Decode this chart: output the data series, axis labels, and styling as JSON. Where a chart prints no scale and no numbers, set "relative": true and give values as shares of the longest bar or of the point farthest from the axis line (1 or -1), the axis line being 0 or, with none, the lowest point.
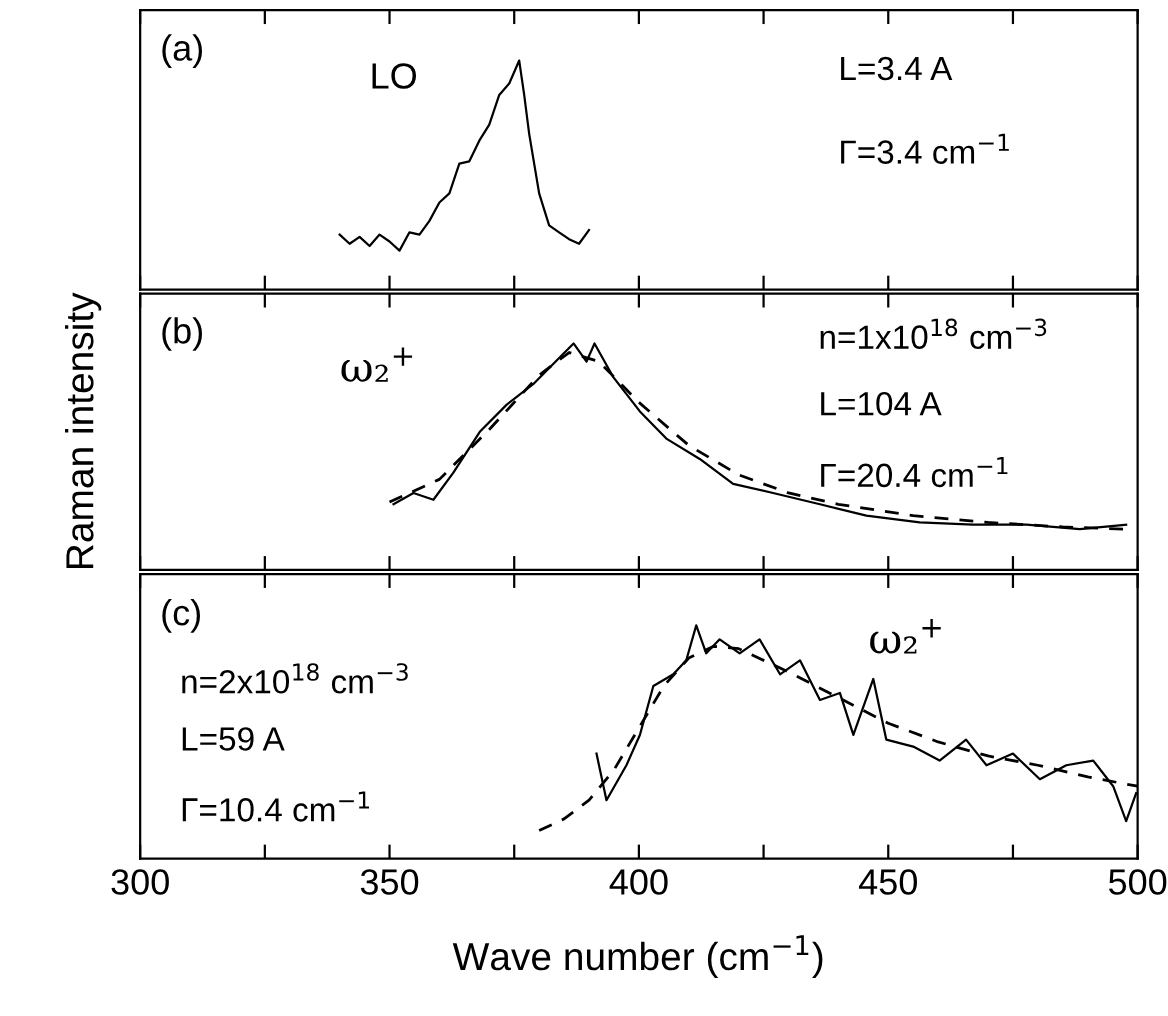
{
  "chart_data": [
    {
      "type": "line",
      "relative": true,
      "tick_labels": false,
      "xlim": [
        300,
        500
      ],
      "xticks": [
        {
          "value": 300,
          "label": null
        },
        {
          "value": 325,
          "label": null
        },
        {
          "value": 350,
          "label": null
        },
        {
          "value": 375,
          "label": null
        },
        {
          "value": 400,
          "label": null
        },
        {
          "value": 425,
          "label": null
        },
        {
          "value": 450,
          "label": null
        },
        {
          "value": 475,
          "label": null
        },
        {
          "value": 500,
          "label": null
        }
      ],
      "annotations": [
        "(a)",
        "LO",
        "L=3.4 A",
        "Γ=3.4 cm$^{−1}$"
      ],
      "series": [
        {
          "color": "#000000",
          "line_style": "solid",
          "x": [
            340,
            342,
            344,
            346,
            348,
            350,
            352,
            354,
            356,
            358,
            360,
            362,
            364,
            366,
            368,
            370,
            372,
            374,
            376,
            377,
            378,
            380,
            382,
            384,
            386,
            388,
            390
          ],
          "values": [
            0.24,
            0.2,
            0.23,
            0.19,
            0.24,
            0.21,
            0.17,
            0.25,
            0.24,
            0.3,
            0.38,
            0.42,
            0.55,
            0.56,
            0.65,
            0.72,
            0.85,
            0.9,
            1.0,
            0.85,
            0.68,
            0.42,
            0.28,
            0.25,
            0.22,
            0.2,
            0.26
          ]
        }
      ]
    },
    {
      "type": "line",
      "relative": true,
      "tick_labels": false,
      "xlim": [
        300,
        500
      ],
      "ylabel": "Raman intensity",
      "xticks": [
        {
          "value": 300,
          "label": null
        },
        {
          "value": 325,
          "label": null
        },
        {
          "value": 350,
          "label": null
        },
        {
          "value": 375,
          "label": null
        },
        {
          "value": 400,
          "label": null
        },
        {
          "value": 425,
          "label": null
        },
        {
          "value": 450,
          "label": null
        },
        {
          "value": 475,
          "label": null
        },
        {
          "value": 500,
          "label": null
        }
      ],
      "annotations": [
        "(b)",
        "ω₂$^{+}$",
        "n=1x10$^{18}$ cm$^{−3}$",
        "L=104 A",
        "Γ=20.4 cm$^{−1}$"
      ],
      "series": [
        {
          "color": "#000000",
          "line_style": "solid",
          "x": [
            350.8,
            354.8,
            358.8,
            362.8,
            368.1,
            373.5,
            378.8,
            384.2,
            386.9,
            389.5,
            391.1,
            394.9,
            400.2,
            405.5,
            412.2,
            418.9,
            426.9,
            436.3,
            445.6,
            456.3,
            467,
            477.7,
            488.4,
            497.7
          ],
          "values": [
            0.29,
            0.34,
            0.31,
            0.43,
            0.61,
            0.73,
            0.82,
            0.94,
            1.0,
            0.92,
            1.0,
            0.85,
            0.7,
            0.58,
            0.49,
            0.38,
            0.34,
            0.29,
            0.24,
            0.21,
            0.2,
            0.2,
            0.18,
            0.2
          ]
        },
        {
          "color": "#000000",
          "line_style": "dashed",
          "x": [
            350,
            360,
            370,
            380,
            386,
            392,
            400,
            410,
            420,
            430,
            440,
            455,
            470,
            485,
            498
          ],
          "values": [
            0.3,
            0.4,
            0.62,
            0.86,
            0.96,
            0.92,
            0.74,
            0.55,
            0.42,
            0.34,
            0.29,
            0.24,
            0.21,
            0.19,
            0.18
          ]
        }
      ]
    },
    {
      "type": "line",
      "relative": true,
      "tick_labels": "x",
      "xlim": [
        300,
        500
      ],
      "xlabel": "Wave number (cm$^{−1}$)",
      "xticks": [
        300,
        {
          "value": 325,
          "label": null
        },
        350,
        {
          "value": 375,
          "label": null
        },
        400,
        {
          "value": 425,
          "label": null
        },
        450,
        {
          "value": 475,
          "label": null
        },
        500
      ],
      "annotations": [
        "(c)",
        "n=2x10$^{18}$ cm$^{−3}$",
        "L=59 A",
        "Γ=10.4 cm$^{−1}$",
        "ω₂$^{+}$"
      ],
      "series": [
        {
          "color": "#000000",
          "line_style": "solid",
          "x": [
            391.5,
            393.5,
            397.5,
            400.2,
            402.9,
            406.9,
            409.5,
            411.5,
            413.5,
            416.2,
            420.2,
            424.2,
            428.3,
            432.3,
            436.3,
            440.3,
            443,
            447,
            449.6,
            455,
            460.3,
            465.6,
            469.7,
            475,
            480.4,
            485.7,
            491.1,
            495.1,
            497.7,
            499.7
          ],
          "values": [
            0.45,
            0.25,
            0.4,
            0.53,
            0.74,
            0.79,
            0.85,
            1.0,
            0.88,
            0.94,
            0.88,
            0.94,
            0.79,
            0.85,
            0.68,
            0.71,
            0.53,
            0.77,
            0.51,
            0.48,
            0.42,
            0.51,
            0.4,
            0.45,
            0.34,
            0.4,
            0.42,
            0.31,
            0.16,
            0.28
          ]
        },
        {
          "color": "#000000",
          "line_style": "dashed",
          "x": [
            380,
            385,
            390,
            395,
            400,
            405,
            410,
            415,
            420,
            430,
            440,
            450,
            460,
            470,
            480,
            490,
            500
          ],
          "values": [
            0.12,
            0.17,
            0.25,
            0.38,
            0.56,
            0.74,
            0.86,
            0.91,
            0.9,
            0.8,
            0.69,
            0.58,
            0.5,
            0.44,
            0.4,
            0.35,
            0.31
          ]
        }
      ]
    }
  ]
}
